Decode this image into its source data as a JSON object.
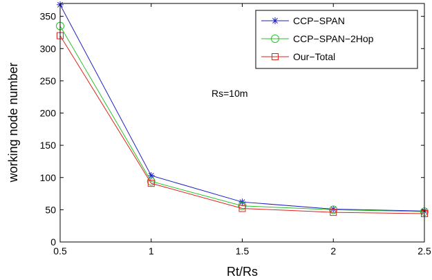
{
  "chart_data": {
    "type": "line",
    "title": "",
    "xlabel": "Rt/Rs",
    "ylabel": "working node number",
    "xlim": [
      0.5,
      2.5
    ],
    "ylim": [
      0,
      370
    ],
    "x_ticks": [
      "0.5",
      "1",
      "1.5",
      "2",
      "2.5"
    ],
    "y_ticks": [
      "0",
      "50",
      "100",
      "150",
      "200",
      "250",
      "300",
      "350"
    ],
    "annotation": "Rs=10m",
    "legend_position": "top-right",
    "grid": false,
    "x": [
      0.5,
      1,
      1.5,
      2,
      2.5
    ],
    "series": [
      {
        "name": "CCP−SPAN",
        "values": [
          368,
          103,
          62,
          51,
          48
        ],
        "color": "#1f1fbf",
        "marker": "star"
      },
      {
        "name": "CCP−SPAN−2Hop",
        "values": [
          335,
          94,
          56,
          50,
          47
        ],
        "color": "#2bbf2b",
        "marker": "circle"
      },
      {
        "name": "Our−Total",
        "values": [
          320,
          91,
          52,
          46,
          44
        ],
        "color": "#e0201a",
        "marker": "square"
      }
    ]
  }
}
